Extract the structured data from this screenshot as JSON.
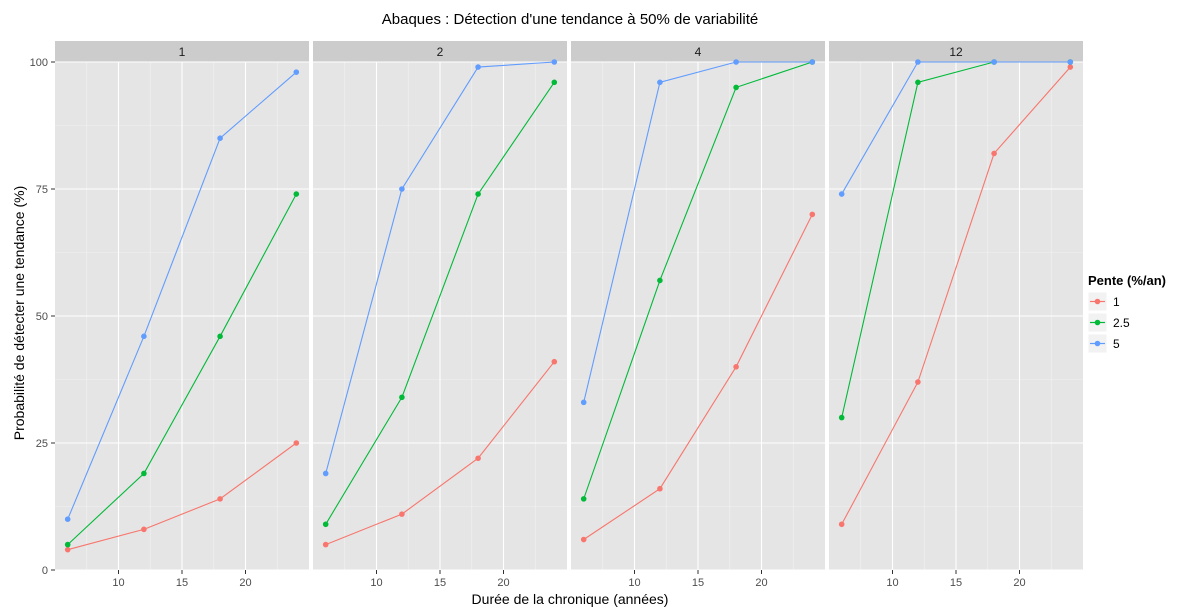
{
  "chart_data": {
    "type": "line",
    "title": "Abaques : Détection d'une tendance à 50% de variabilité",
    "xlabel": "Durée de la chronique (années)",
    "ylabel": "Probabilité de détecter une tendance (%)",
    "x": [
      6,
      12,
      18,
      24
    ],
    "xlim": [
      5,
      25
    ],
    "ylim": [
      0,
      100
    ],
    "x_ticks": [
      10,
      15,
      20
    ],
    "y_ticks": [
      0,
      25,
      50,
      75,
      100
    ],
    "grid": true,
    "legend": {
      "title": "Pente (%/an)",
      "placement": "right"
    },
    "colors": {
      "1": "#F8766D",
      "2.5": "#00BA38",
      "5": "#619CFF",
      "panel_bg": "#E5E5E5",
      "strip_bg": "#CCCCCC",
      "grid_major": "#FFFFFF",
      "grid_minor": "#F2F2F2"
    },
    "panels": [
      {
        "label": "1",
        "series": [
          {
            "name": "1",
            "values": [
              4,
              8,
              14,
              25
            ]
          },
          {
            "name": "2.5",
            "values": [
              5,
              19,
              46,
              74
            ]
          },
          {
            "name": "5",
            "values": [
              10,
              46,
              85,
              98
            ]
          }
        ]
      },
      {
        "label": "2",
        "series": [
          {
            "name": "1",
            "values": [
              5,
              11,
              22,
              41
            ]
          },
          {
            "name": "2.5",
            "values": [
              9,
              34,
              74,
              96
            ]
          },
          {
            "name": "5",
            "values": [
              19,
              75,
              99,
              100
            ]
          }
        ]
      },
      {
        "label": "4",
        "series": [
          {
            "name": "1",
            "values": [
              6,
              16,
              40,
              70
            ]
          },
          {
            "name": "2.5",
            "values": [
              14,
              57,
              95,
              100
            ]
          },
          {
            "name": "5",
            "values": [
              33,
              96,
              100,
              100
            ]
          }
        ]
      },
      {
        "label": "12",
        "series": [
          {
            "name": "1",
            "values": [
              9,
              37,
              82,
              99
            ]
          },
          {
            "name": "2.5",
            "values": [
              30,
              96,
              100,
              100
            ]
          },
          {
            "name": "5",
            "values": [
              74,
              100,
              100,
              100
            ]
          }
        ]
      }
    ]
  }
}
